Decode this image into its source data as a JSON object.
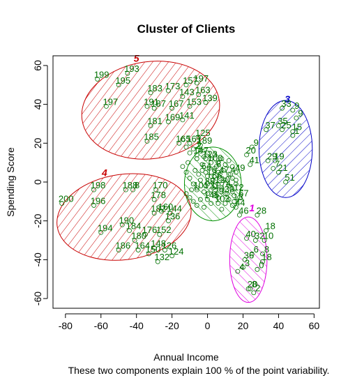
{
  "chart_data": {
    "type": "scatter",
    "title": "Cluster of Clients",
    "xlabel": "Annual Income",
    "ylabel": "Spending Score",
    "subtitle": "These two components explain 100 % of the point variability.",
    "xlim": [
      -87,
      63
    ],
    "ylim": [
      -65,
      65
    ],
    "xticks": [
      -80,
      -60,
      -40,
      -20,
      0,
      20,
      40,
      60
    ],
    "yticks": [
      -60,
      -40,
      -20,
      0,
      20,
      40,
      60
    ],
    "xtick_labels": [
      "-80",
      "-60",
      "-40",
      "-20",
      "0",
      "20",
      "40",
      "60"
    ],
    "ytick_labels": [
      "-60",
      "-40",
      "-20",
      "0",
      "20",
      "40",
      "60"
    ],
    "point_color": "#007000",
    "clusters": [
      {
        "label": "1",
        "color": "#e000e0",
        "hatch_angle": -45,
        "center": [
          23,
          -40
        ],
        "rx": 10.5,
        "ry": 22,
        "angle": 0,
        "label_pos": [
          25,
          -15
        ]
      },
      {
        "label": "2",
        "color": "#009000",
        "hatch_angle": -45,
        "center": [
          3,
          -1
        ],
        "rx": 16,
        "ry": 19,
        "angle": 0,
        "label_pos": [
          -5,
          17
        ]
      },
      {
        "label": "3",
        "color": "#0000c8",
        "hatch_angle": 45,
        "center": [
          44,
          17
        ],
        "rx": 15,
        "ry": 25,
        "angle": 0,
        "label_pos": [
          45,
          41
        ]
      },
      {
        "label": "4",
        "color": "#c80000",
        "hatch_angle": 45,
        "center": [
          -47,
          -18
        ],
        "rx": 38,
        "ry": 22,
        "angle": -8,
        "label_pos": [
          -58,
          3
        ]
      },
      {
        "label": "5",
        "color": "#c80000",
        "hatch_angle": 45,
        "center": [
          -32,
          37
        ],
        "rx": 39,
        "ry": 25,
        "angle": -8,
        "label_pos": [
          -40,
          62
        ]
      }
    ],
    "points": [
      {
        "x": 23,
        "y": -55,
        "label": "20"
      },
      {
        "x": 24,
        "y": -55,
        "label": "8"
      },
      {
        "x": 26,
        "y": -57,
        "label": "2"
      },
      {
        "x": 28,
        "y": -45,
        "label": "0"
      },
      {
        "x": 17,
        "y": -46,
        "label": "4"
      },
      {
        "x": 20,
        "y": -44,
        "label": "3"
      },
      {
        "x": 21,
        "y": -40,
        "label": "36"
      },
      {
        "x": 25,
        "y": -37,
        "label": "6"
      },
      {
        "x": 31,
        "y": -41,
        "label": "18"
      },
      {
        "x": 31,
        "y": -37,
        "label": "8"
      },
      {
        "x": 22,
        "y": -29,
        "label": "40"
      },
      {
        "x": 27,
        "y": -30,
        "label": "32"
      },
      {
        "x": 32,
        "y": -30,
        "label": "10"
      },
      {
        "x": 33,
        "y": -25,
        "label": "18"
      },
      {
        "x": 28,
        "y": -17,
        "label": "28"
      },
      {
        "x": 18,
        "y": -17,
        "label": "46"
      },
      {
        "x": 42,
        "y": 38,
        "label": "33"
      },
      {
        "x": 48,
        "y": 37,
        "label": "9"
      },
      {
        "x": 50,
        "y": 33,
        "label": "9"
      },
      {
        "x": 40,
        "y": 29,
        "label": "35"
      },
      {
        "x": 33,
        "y": 27,
        "label": "37"
      },
      {
        "x": 42,
        "y": 27,
        "label": "25"
      },
      {
        "x": 48,
        "y": 26,
        "label": "15"
      },
      {
        "x": 48,
        "y": 24,
        "label": "1"
      },
      {
        "x": 25,
        "y": 18,
        "label": "9"
      },
      {
        "x": 22,
        "y": 14,
        "label": "20"
      },
      {
        "x": 34,
        "y": 11,
        "label": "29"
      },
      {
        "x": 38,
        "y": 11,
        "label": "19"
      },
      {
        "x": 37,
        "y": 7,
        "label": "7"
      },
      {
        "x": 40,
        "y": 5,
        "label": "21"
      },
      {
        "x": 24,
        "y": 9,
        "label": "41"
      },
      {
        "x": 44,
        "y": 0,
        "label": "51"
      },
      {
        "x": -10,
        "y": 20,
        "label": "161"
      },
      {
        "x": -4,
        "y": 19,
        "label": "189"
      },
      {
        "x": -5,
        "y": 23,
        "label": "125"
      },
      {
        "x": -6,
        "y": 14,
        "label": "147"
      },
      {
        "x": -1,
        "y": 12,
        "label": "123"
      },
      {
        "x": 2,
        "y": 10,
        "label": "100"
      },
      {
        "x": 4,
        "y": 7,
        "label": "8"
      },
      {
        "x": 7,
        "y": 4,
        "label": "47"
      },
      {
        "x": -3,
        "y": 6,
        "label": "64"
      },
      {
        "x": 0,
        "y": 3,
        "label": "19"
      },
      {
        "x": 3,
        "y": 1,
        "label": "66"
      },
      {
        "x": 6,
        "y": -1,
        "label": "120"
      },
      {
        "x": -1,
        "y": -2,
        "label": "88"
      },
      {
        "x": -6,
        "y": -4,
        "label": "101"
      },
      {
        "x": 2,
        "y": -4,
        "label": "11"
      },
      {
        "x": 8,
        "y": -3,
        "label": "74"
      },
      {
        "x": 4,
        "y": -7,
        "label": "29"
      },
      {
        "x": 10,
        "y": -6,
        "label": "30"
      },
      {
        "x": 14,
        "y": -5,
        "label": "112"
      },
      {
        "x": 12,
        "y": 4,
        "label": "4"
      },
      {
        "x": 16,
        "y": 5,
        "label": "49"
      },
      {
        "x": 18,
        "y": -8,
        "label": "67"
      },
      {
        "x": 15,
        "y": -10,
        "label": "13"
      },
      {
        "x": 16,
        "y": -13,
        "label": "44"
      },
      {
        "x": 0,
        "y": -9,
        "label": "145"
      },
      {
        "x": 6,
        "y": -11,
        "label": "103"
      },
      {
        "x": -64,
        "y": -4,
        "label": "198"
      },
      {
        "x": -82,
        "y": -11,
        "label": "200"
      },
      {
        "x": -64,
        "y": -12,
        "label": "196"
      },
      {
        "x": -46,
        "y": -4,
        "label": "188"
      },
      {
        "x": -42,
        "y": -4,
        "label": "8"
      },
      {
        "x": -29,
        "y": -4,
        "label": "170"
      },
      {
        "x": -30,
        "y": -9,
        "label": "178"
      },
      {
        "x": -30,
        "y": -16,
        "label": "182"
      },
      {
        "x": -26,
        "y": -15,
        "label": "160"
      },
      {
        "x": -21,
        "y": -16,
        "label": "144"
      },
      {
        "x": -22,
        "y": -20,
        "label": "136"
      },
      {
        "x": -60,
        "y": -26,
        "label": "194"
      },
      {
        "x": -48,
        "y": -22,
        "label": "190"
      },
      {
        "x": -44,
        "y": -25,
        "label": "184"
      },
      {
        "x": -41,
        "y": -30,
        "label": "180"
      },
      {
        "x": -35,
        "y": -27,
        "label": "176"
      },
      {
        "x": -27,
        "y": -27,
        "label": "152"
      },
      {
        "x": -50,
        "y": -35,
        "label": "186"
      },
      {
        "x": -39,
        "y": -35,
        "label": "164"
      },
      {
        "x": -30,
        "y": -34,
        "label": "148"
      },
      {
        "x": -24,
        "y": -35,
        "label": "126"
      },
      {
        "x": -33,
        "y": -37,
        "label": "150"
      },
      {
        "x": -28,
        "y": -41,
        "label": "132"
      },
      {
        "x": -20,
        "y": -38,
        "label": "124"
      },
      {
        "x": -62,
        "y": 53,
        "label": "199"
      },
      {
        "x": -45,
        "y": 56,
        "label": "193"
      },
      {
        "x": -50,
        "y": 50,
        "label": "195"
      },
      {
        "x": -57,
        "y": 39,
        "label": "197"
      },
      {
        "x": -32,
        "y": 46,
        "label": "183"
      },
      {
        "x": -22,
        "y": 47,
        "label": "173"
      },
      {
        "x": -12,
        "y": 50,
        "label": "157"
      },
      {
        "x": -6,
        "y": 51,
        "label": "197"
      },
      {
        "x": -5,
        "y": 45,
        "label": "163"
      },
      {
        "x": -14,
        "y": 44,
        "label": "143"
      },
      {
        "x": -34,
        "y": 39,
        "label": "191"
      },
      {
        "x": -30,
        "y": 38,
        "label": "187"
      },
      {
        "x": -20,
        "y": 38,
        "label": "167"
      },
      {
        "x": -10,
        "y": 39,
        "label": "153"
      },
      {
        "x": -1,
        "y": 41,
        "label": "139"
      },
      {
        "x": -32,
        "y": 29,
        "label": "181"
      },
      {
        "x": -22,
        "y": 31,
        "label": "169"
      },
      {
        "x": -14,
        "y": 32,
        "label": "141"
      },
      {
        "x": -34,
        "y": 21,
        "label": "185"
      },
      {
        "x": -16,
        "y": 20,
        "label": "165"
      }
    ],
    "cloud_points": [
      [
        -14,
        22
      ],
      [
        -12,
        18
      ],
      [
        -10,
        15
      ],
      [
        -8,
        17
      ],
      [
        -6,
        12
      ],
      [
        -4,
        16
      ],
      [
        -2,
        13
      ],
      [
        0,
        15
      ],
      [
        2,
        12
      ],
      [
        4,
        14
      ],
      [
        6,
        10
      ],
      [
        8,
        12
      ],
      [
        10,
        9
      ],
      [
        12,
        11
      ],
      [
        14,
        8
      ],
      [
        -14,
        8
      ],
      [
        -12,
        5
      ],
      [
        -10,
        2
      ],
      [
        -8,
        -1
      ],
      [
        -6,
        -3
      ],
      [
        -4,
        1
      ],
      [
        -2,
        -5
      ],
      [
        0,
        -1
      ],
      [
        2,
        3
      ],
      [
        4,
        -6
      ],
      [
        6,
        5
      ],
      [
        8,
        -4
      ],
      [
        10,
        1
      ],
      [
        12,
        -2
      ],
      [
        14,
        2
      ],
      [
        16,
        -1
      ],
      [
        -12,
        -6
      ],
      [
        -10,
        -8
      ],
      [
        -8,
        -10
      ],
      [
        -6,
        -12
      ],
      [
        -4,
        -9
      ],
      [
        -2,
        -13
      ],
      [
        0,
        -6
      ],
      [
        2,
        -11
      ],
      [
        4,
        -2
      ],
      [
        6,
        -8
      ],
      [
        8,
        -14
      ],
      [
        10,
        -11
      ],
      [
        12,
        -9
      ],
      [
        14,
        -12
      ],
      [
        16,
        1
      ],
      [
        -3,
        9
      ],
      [
        1,
        7
      ],
      [
        5,
        8
      ],
      [
        9,
        6
      ],
      [
        -11,
        10
      ],
      [
        -7,
        6
      ],
      [
        3,
        -3
      ],
      [
        7,
        2
      ],
      [
        11,
        -6
      ],
      [
        -5,
        4
      ],
      [
        -1,
        5
      ],
      [
        13,
        4
      ],
      [
        15,
        -7
      ],
      [
        -9,
        -4
      ]
    ]
  }
}
